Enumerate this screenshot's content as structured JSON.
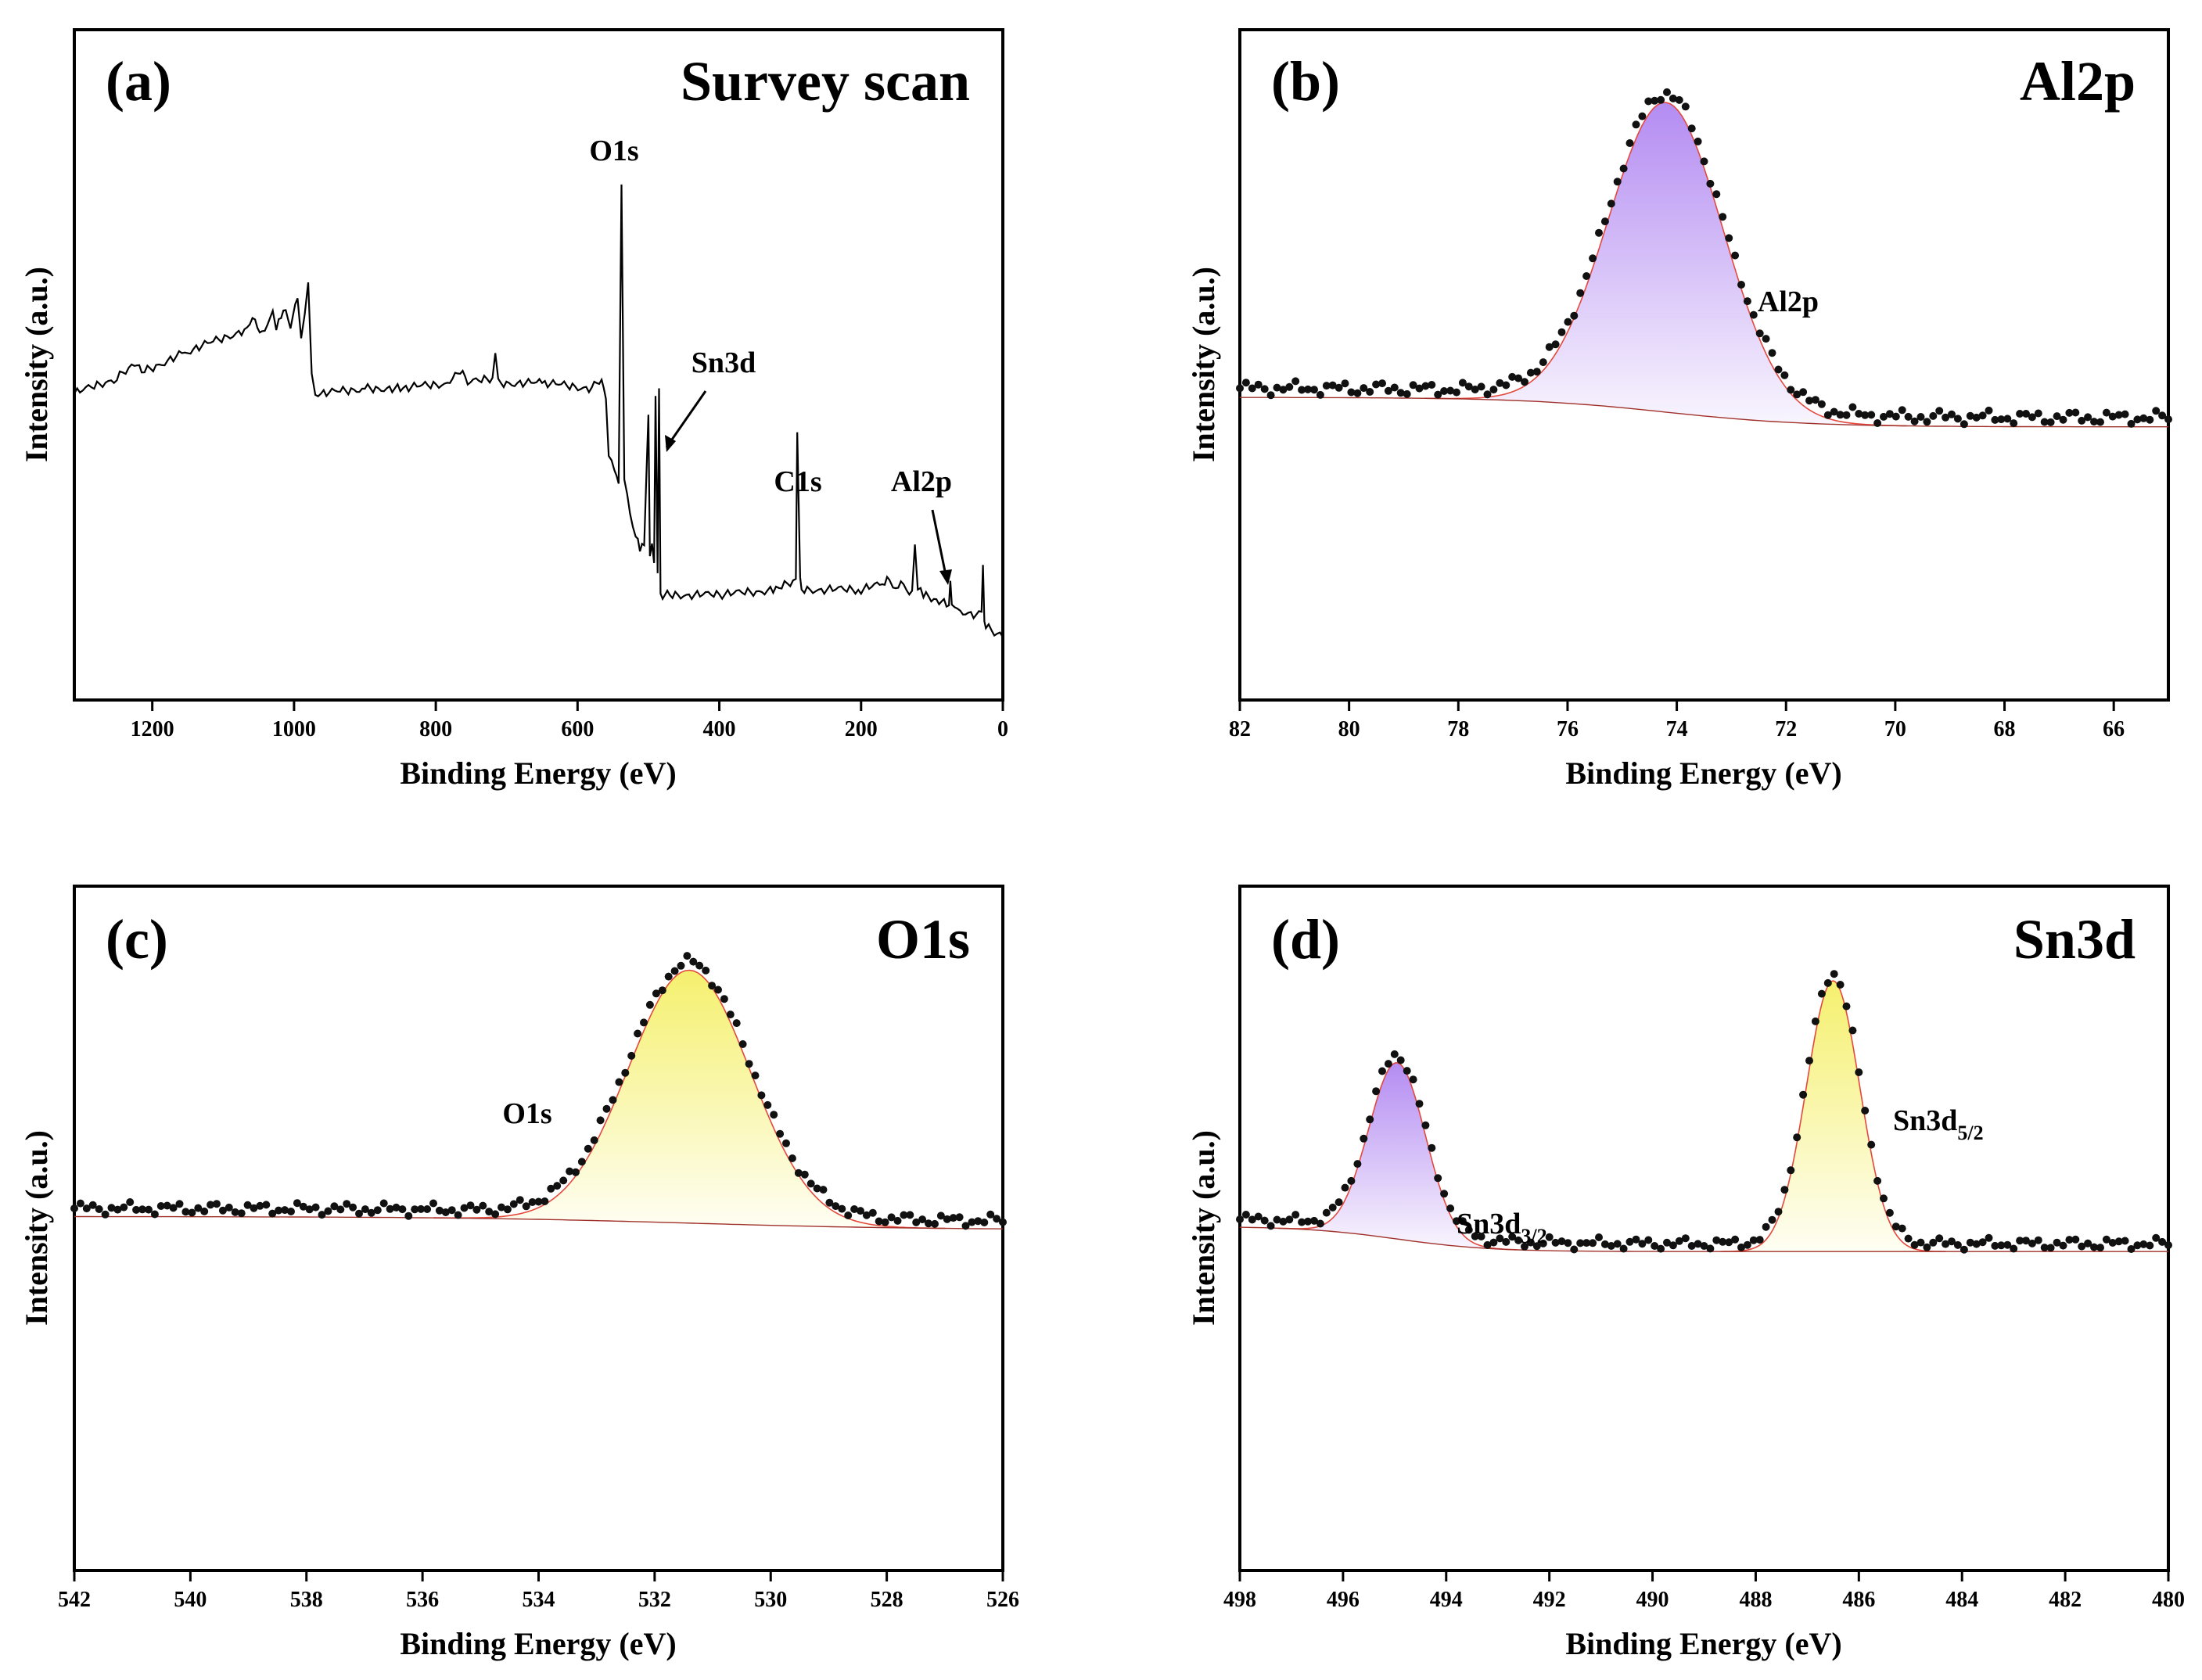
{
  "figure": {
    "xlabel": "Binding Energy (eV)",
    "ylabel": "Intensity (a.u.)"
  },
  "chart_data": [
    {
      "id": "a",
      "type": "line",
      "panel_label": "(a)",
      "title": "Survey scan",
      "xlabel": "Binding Energy (eV)",
      "ylabel": "Intensity (a.u.)",
      "xlim": [
        1310,
        0
      ],
      "ylim": [
        0,
        100
      ],
      "x_ticks": [
        1200,
        1000,
        800,
        600,
        400,
        200,
        0
      ],
      "series": [
        {
          "name": "Survey spectrum",
          "x": [
            1310,
            1250,
            1225,
            1215,
            1150,
            1070,
            1055,
            1045,
            1030,
            1025,
            1015,
            1005,
            995,
            990,
            985,
            980,
            975,
            970,
            962,
            900,
            850,
            780,
            762,
            755,
            720,
            716,
            712,
            650,
            580,
            566,
            560,
            556,
            548,
            542,
            538,
            534,
            530,
            526,
            522,
            518,
            512,
            506,
            500,
            498,
            495,
            492,
            490,
            487,
            485,
            483,
            480,
            470,
            400,
            320,
            292,
            290,
            286,
            284,
            280,
            200,
            170,
            160,
            155,
            140,
            128,
            124,
            120,
            112,
            90,
            76,
            74,
            72,
            60,
            30,
            28,
            26,
            24,
            12,
            0
          ],
          "y": [
            49,
            52,
            55,
            53,
            57,
            61,
            63,
            60,
            64,
            61,
            65,
            62,
            67,
            60,
            64,
            70,
            52,
            48,
            49,
            50,
            50,
            51,
            54,
            51,
            52,
            56,
            51,
            51,
            50,
            52,
            48,
            38,
            35,
            32,
            88,
            32,
            30,
            26,
            24,
            22,
            20,
            21,
            45,
            18,
            20,
            17,
            48,
            15,
            50,
            12,
            11,
            11,
            11,
            12,
            14,
            41,
            14,
            12,
            12,
            12,
            13,
            14,
            12,
            13,
            11,
            20,
            12,
            11,
            10,
            9,
            14,
            9,
            8,
            7,
            16,
            6,
            5,
            4,
            3
          ]
        }
      ],
      "annotations": [
        {
          "text": "O1s",
          "x": 532,
          "y": 97
        },
        {
          "text": "C1s",
          "x": 285,
          "y": 38
        },
        {
          "text": "Sn3d",
          "x": 470,
          "y": 55
        },
        {
          "text": "Al2p",
          "x": 88,
          "y": 38
        }
      ]
    },
    {
      "id": "b",
      "type": "scatter",
      "panel_label": "(b)",
      "title": "Al2p",
      "xlabel": "Binding Energy (eV)",
      "ylabel": "Intensity (a.u.)",
      "xlim": [
        82,
        65
      ],
      "ylim": [
        0,
        100
      ],
      "x_ticks": [
        82,
        80,
        78,
        76,
        74,
        72,
        70,
        68,
        66
      ],
      "peak": {
        "label": "Al2p",
        "center": 74.2,
        "height": 84,
        "sigma": 1.05,
        "color": "#b48cf2"
      },
      "background": {
        "type": "step",
        "high": 13,
        "low": 5,
        "center": 74.2,
        "width": 1.3
      },
      "annotations": [
        {
          "text": "Al2p",
          "x": 72.7,
          "y": 69
        }
      ]
    },
    {
      "id": "c",
      "type": "scatter",
      "panel_label": "(c)",
      "title": "O1s",
      "xlabel": "Binding Energy (eV)",
      "ylabel": "Intensity (a.u.)",
      "xlim": [
        542,
        526
      ],
      "ylim": [
        0,
        100
      ],
      "x_ticks": [
        542,
        540,
        538,
        536,
        534,
        532,
        530,
        528,
        526
      ],
      "peak": {
        "label": "O1s",
        "center": 531.4,
        "height": 77,
        "sigma": 1.05,
        "color": "#f5f06e"
      },
      "background": {
        "type": "step",
        "high": 14,
        "low": 10,
        "center": 531.4,
        "width": 2.0
      },
      "annotations": [
        {
          "text": "O1s",
          "x": 534.8,
          "y": 65
        }
      ]
    },
    {
      "id": "d",
      "type": "scatter",
      "panel_label": "(d)",
      "title": "Sn3d",
      "xlabel": "Binding Energy (eV)",
      "ylabel": "Intensity (a.u.)",
      "xlim": [
        498,
        480
      ],
      "ylim": [
        0,
        100
      ],
      "x_ticks": [
        498,
        496,
        494,
        492,
        490,
        488,
        486,
        484,
        482,
        480
      ],
      "peaks": [
        {
          "label": "Sn3d",
          "sub": "3/2",
          "center": 494.95,
          "height": 56,
          "sigma": 0.55,
          "color": "#b48cf2"
        },
        {
          "label": "Sn3d",
          "sub": "5/2",
          "center": 486.5,
          "height": 86,
          "sigma": 0.52,
          "color": "#f5f06e"
        }
      ],
      "background": {
        "type": "step",
        "high": 18,
        "low": 10,
        "center": 494.95,
        "width": 0.9
      },
      "annotations": [
        {
          "text": "Sn3d",
          "sub": "3/2",
          "x": 493.3,
          "y": 52
        },
        {
          "text": "Sn3d",
          "sub": "5/2",
          "x": 484.8,
          "y": 74
        }
      ]
    }
  ]
}
